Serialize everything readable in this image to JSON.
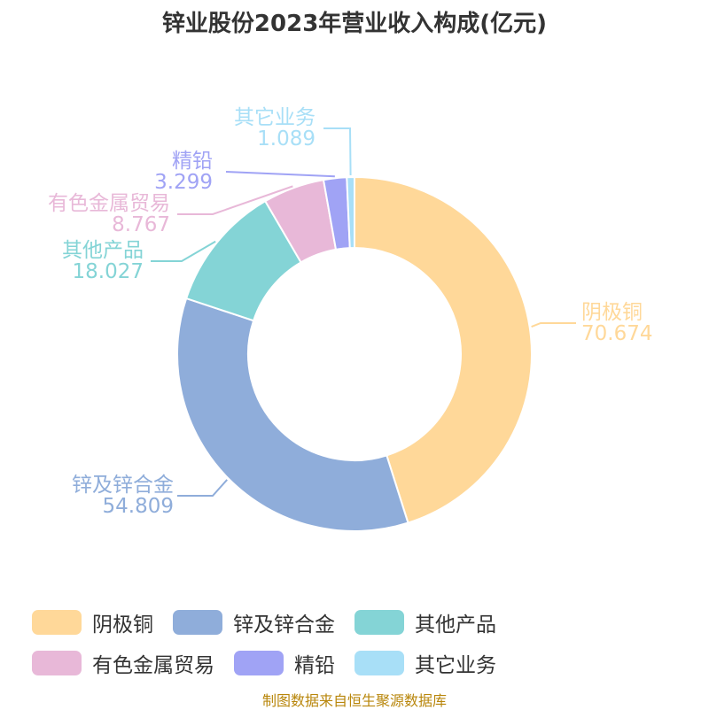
{
  "chart_data": {
    "type": "pie",
    "title": "锌业股份2023年营业收入构成(亿元)",
    "series": [
      {
        "name": "阴极铜",
        "value": 70.674,
        "display": "70.674",
        "color": "#FFD899"
      },
      {
        "name": "锌及锌合金",
        "value": 54.809,
        "display": "54.809",
        "color": "#8FADDA"
      },
      {
        "name": "其他产品",
        "value": 18.027,
        "display": "18.027",
        "color": "#84D4D6"
      },
      {
        "name": "有色金属贸易",
        "value": 8.767,
        "display": "8.767",
        "color": "#E8B8D8"
      },
      {
        "name": "精铅",
        "value": 3.299,
        "display": "3.299",
        "color": "#A0A3F5"
      },
      {
        "name": "其它业务",
        "value": 1.089,
        "display": "1.089",
        "color": "#A8DFF7"
      }
    ],
    "legend_position": "bottom"
  },
  "footer": {
    "source": "制图数据来自恒生聚源数据库"
  }
}
